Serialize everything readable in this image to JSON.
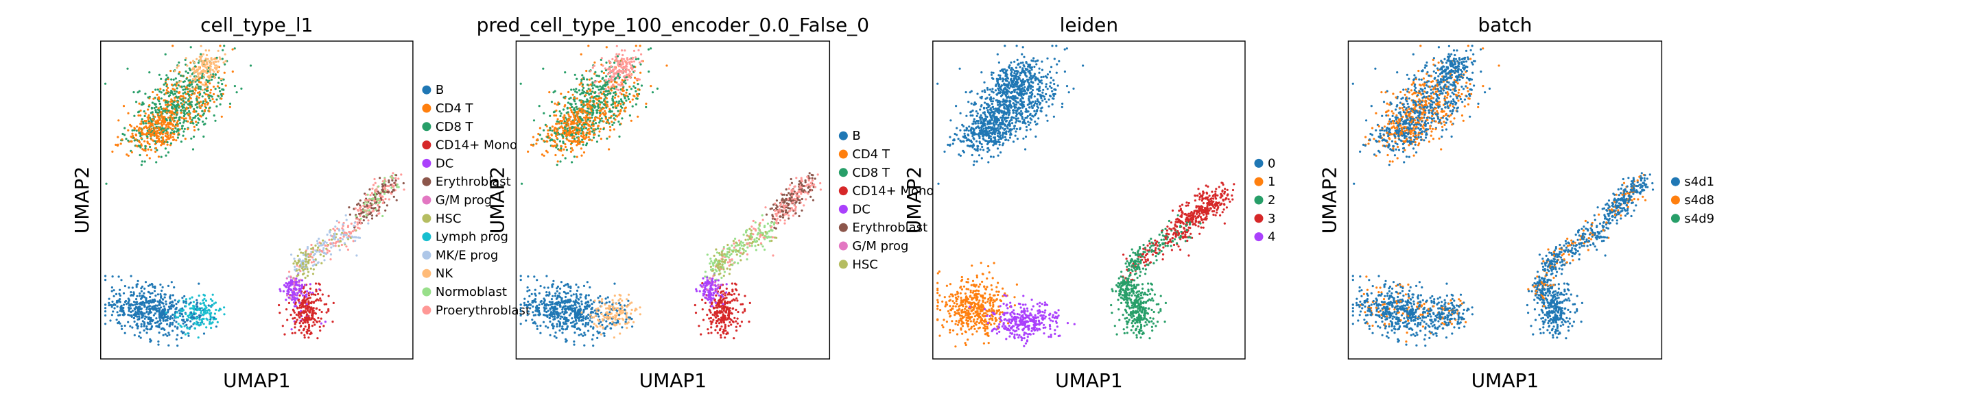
{
  "chart_data": [
    {
      "type": "scatter",
      "title": "cell_type_l1",
      "xlabel": "UMAP1",
      "ylabel": "UMAP2",
      "grid": false,
      "legend_position": "right",
      "legend": [
        {
          "name": "B",
          "color": "#1f77b4"
        },
        {
          "name": "CD4 T",
          "color": "#ff7f0e"
        },
        {
          "name": "CD8 T",
          "color": "#279e68"
        },
        {
          "name": "CD14+ Mono",
          "color": "#d62728"
        },
        {
          "name": "DC",
          "color": "#aa40fc"
        },
        {
          "name": "Erythroblast",
          "color": "#8c564b"
        },
        {
          "name": "G/M prog",
          "color": "#e377c2"
        },
        {
          "name": "HSC",
          "color": "#b5bd61"
        },
        {
          "name": "Lymph prog",
          "color": "#17becf"
        },
        {
          "name": "MK/E prog",
          "color": "#aec7e8"
        },
        {
          "name": "NK",
          "color": "#ffbb78"
        },
        {
          "name": "Normoblast",
          "color": "#98df8a"
        },
        {
          "name": "Proerythroblast",
          "color": "#ff9896"
        }
      ]
    },
    {
      "type": "scatter",
      "title": "pred_cell_type_100_encoder_0.0_False_0",
      "xlabel": "UMAP1",
      "ylabel": "UMAP2",
      "grid": false,
      "legend_position": "right",
      "legend": [
        {
          "name": "B",
          "color": "#1f77b4"
        },
        {
          "name": "CD4 T",
          "color": "#ff7f0e"
        },
        {
          "name": "CD8 T",
          "color": "#279e68"
        },
        {
          "name": "CD14+ Mono",
          "color": "#d62728"
        },
        {
          "name": "DC",
          "color": "#aa40fc"
        },
        {
          "name": "Erythroblast",
          "color": "#8c564b"
        },
        {
          "name": "G/M prog",
          "color": "#e377c2"
        },
        {
          "name": "HSC",
          "color": "#b5bd61"
        }
      ]
    },
    {
      "type": "scatter",
      "title": "leiden",
      "xlabel": "UMAP1",
      "ylabel": "UMAP2",
      "grid": false,
      "legend_position": "right",
      "legend": [
        {
          "name": "0",
          "color": "#1f77b4"
        },
        {
          "name": "1",
          "color": "#ff7f0e"
        },
        {
          "name": "2",
          "color": "#279e68"
        },
        {
          "name": "3",
          "color": "#d62728"
        },
        {
          "name": "4",
          "color": "#aa40fc"
        }
      ]
    },
    {
      "type": "scatter",
      "title": "batch",
      "xlabel": "UMAP1",
      "ylabel": "UMAP2",
      "grid": false,
      "legend_position": "right",
      "legend": [
        {
          "name": "s4d1",
          "color": "#1f77b4"
        },
        {
          "name": "s4d8",
          "color": "#ff7f0e"
        },
        {
          "name": "s4d9",
          "color": "#279e68"
        }
      ]
    }
  ]
}
